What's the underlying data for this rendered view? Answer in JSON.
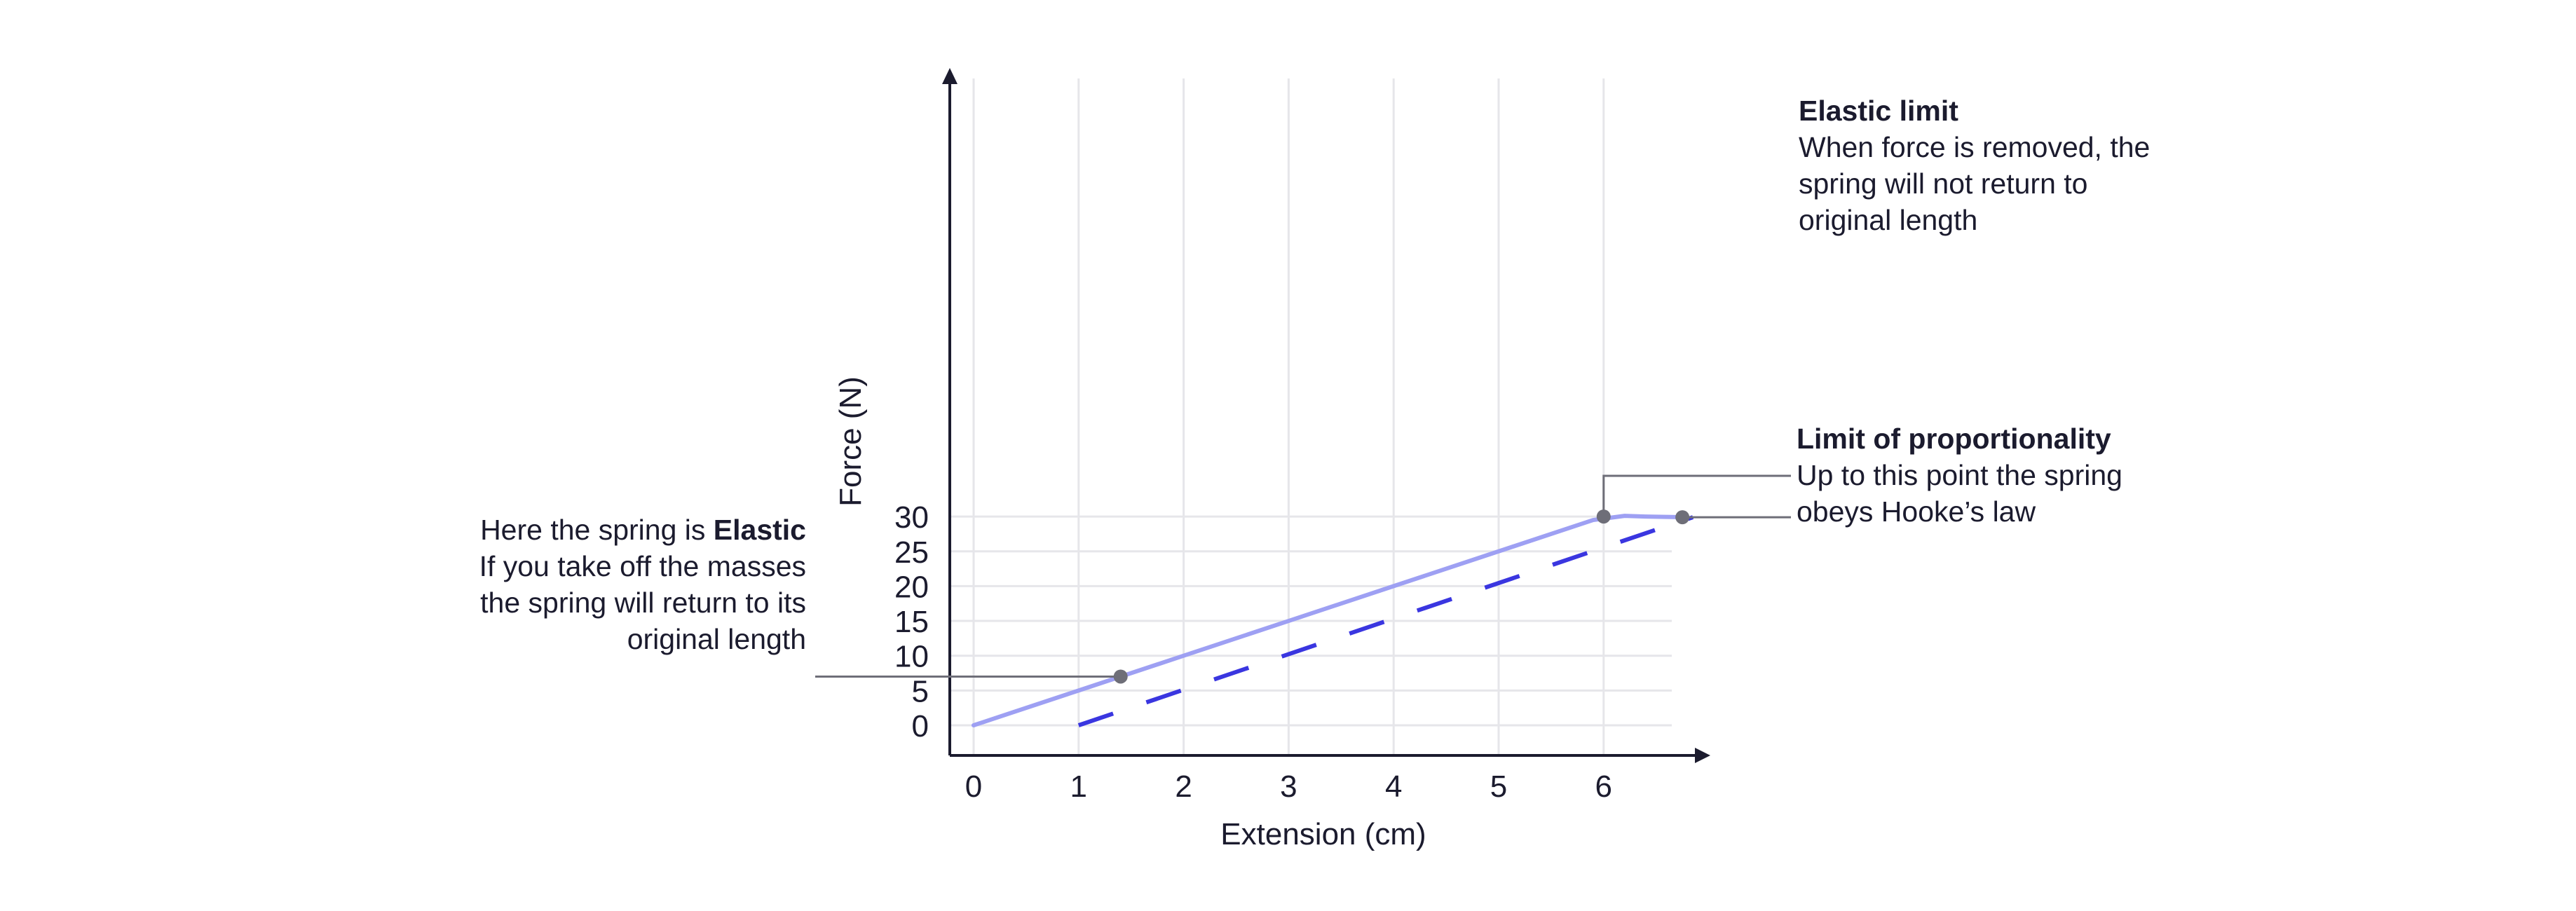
{
  "chart_data": {
    "type": "line",
    "xlabel": "Extension (cm)",
    "ylabel": "Force (N)",
    "xlim": [
      0,
      6.7
    ],
    "ylim": [
      0,
      30
    ],
    "x_ticks": [
      "0",
      "1",
      "2",
      "3",
      "4",
      "5",
      "6"
    ],
    "y_ticks": [
      "0",
      "5",
      "10",
      "15",
      "20",
      "25",
      "30"
    ],
    "grid": true,
    "series": [
      {
        "style": "solid",
        "color": "#9ea0f3",
        "points": [
          [
            0,
            0
          ],
          [
            1,
            5
          ],
          [
            2,
            10
          ],
          [
            3,
            15
          ],
          [
            4,
            20
          ],
          [
            5,
            25
          ],
          [
            5.9,
            29.5
          ],
          [
            6.2,
            30.1
          ],
          [
            6.4,
            30
          ],
          [
            6.8,
            29.9
          ]
        ]
      },
      {
        "style": "dashed",
        "color": "#3a36e0",
        "points": [
          [
            1,
            0
          ],
          [
            6.85,
            29.9
          ]
        ]
      }
    ],
    "markers": [
      {
        "x": 1.4,
        "y": 7
      },
      {
        "x": 6,
        "y": 30
      },
      {
        "x": 6.75,
        "y": 29.9
      }
    ],
    "annotations": {
      "elastic": {
        "prefix": "Here the spring is ",
        "bold": "Elastic",
        "lines": [
          "If you take off the masses",
          "the spring will return to its",
          "original length"
        ]
      },
      "elastic_limit": {
        "title": "Elastic limit",
        "lines": [
          "When force is removed, the",
          "spring will not return to",
          "original length"
        ]
      },
      "proportionality": {
        "title": "Limit of proportionality",
        "lines": [
          "Up to this point the spring",
          "obeys Hooke’s law"
        ]
      }
    }
  },
  "colors": {
    "axis": "#1b1b2e",
    "grid": "#e6e6ea",
    "solid_line": "#9ea0f3",
    "dashed_line": "#3a36e0",
    "marker": "#6e6e78",
    "leader": "#6e6e78"
  }
}
